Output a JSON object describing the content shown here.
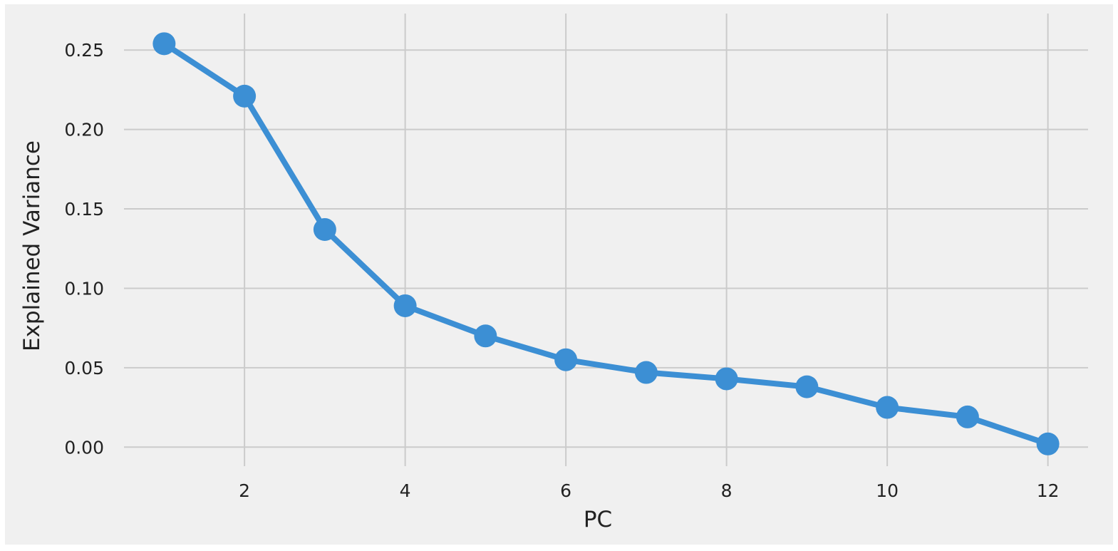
{
  "chart_data": {
    "type": "line",
    "title": "",
    "xlabel": "PC",
    "ylabel": "Explained Variance",
    "x": [
      1,
      2,
      3,
      4,
      5,
      6,
      7,
      8,
      9,
      10,
      11,
      12
    ],
    "series": [
      {
        "values": [
          0.254,
          0.221,
          0.137,
          0.089,
          0.07,
          0.055,
          0.047,
          0.043,
          0.038,
          0.025,
          0.019,
          0.002
        ]
      }
    ],
    "xlim": [
      0.5,
      12.5
    ],
    "ylim": [
      -0.012,
      0.273
    ],
    "xticks": [
      2,
      4,
      6,
      8,
      10,
      12
    ],
    "xtick_labels": [
      "2",
      "4",
      "6",
      "8",
      "10",
      "12"
    ],
    "yticks": [
      0.0,
      0.05,
      0.1,
      0.15,
      0.2,
      0.25
    ],
    "ytick_labels": [
      "0.00",
      "0.05",
      "0.10",
      "0.15",
      "0.20",
      "0.25"
    ],
    "grid": true,
    "legend": "none",
    "colors": {
      "line": "#3c8fd4",
      "marker": "#3c8fd4",
      "background": "#f0f0f0",
      "grid": "#cbcbcb"
    }
  }
}
